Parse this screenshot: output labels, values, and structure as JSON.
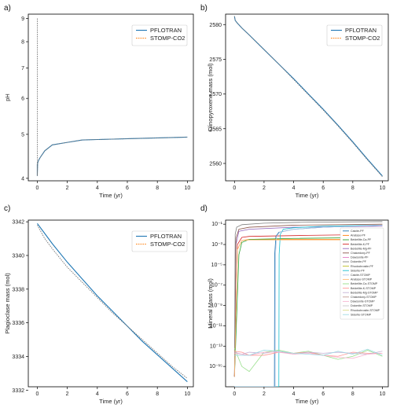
{
  "colors": {
    "pflotran": "#1f77b4",
    "stomp": "#ff7f0e",
    "stomp_line": "#7a7a7a"
  },
  "chart_data": [
    {
      "type": "line",
      "panel_label": "a)",
      "xlabel": "Time (yr)",
      "ylabel": "pH",
      "xlim": [
        -0.6,
        10.4
      ],
      "ylim": [
        3.95,
        9.2
      ],
      "y_scale": "log",
      "x_ticks": [
        0,
        2,
        4,
        6,
        8,
        10
      ],
      "y_ticks": [
        4,
        5,
        6,
        7,
        8,
        9
      ],
      "y_tick_labels": [
        "4",
        "5",
        "6",
        "7",
        "8",
        "9"
      ],
      "legend": "upper-right",
      "series": [
        {
          "name": "PFLOTRAN",
          "x": [
            0,
            0,
            0.02,
            0.08,
            0.2,
            0.5,
            1,
            2,
            3,
            4,
            5,
            6,
            7,
            8,
            9,
            10
          ],
          "y": [
            4.3,
            4.05,
            4.32,
            4.38,
            4.45,
            4.6,
            4.74,
            4.8,
            4.86,
            4.87,
            4.88,
            4.89,
            4.9,
            4.91,
            4.92,
            4.93
          ]
        },
        {
          "name": "STOMP-CO2",
          "x": [
            0,
            0,
            0.02,
            0.08,
            0.2,
            0.5,
            1,
            2,
            3,
            4,
            5,
            6,
            7,
            8,
            9,
            10
          ],
          "y": [
            9.0,
            4.05,
            4.32,
            4.38,
            4.45,
            4.6,
            4.74,
            4.8,
            4.86,
            4.87,
            4.88,
            4.89,
            4.9,
            4.91,
            4.92,
            4.93
          ]
        }
      ]
    },
    {
      "type": "line",
      "panel_label": "b)",
      "xlabel": "Time (yr)",
      "ylabel": "Clinopyroxene mass (mol)",
      "xlim": [
        -0.6,
        10.4
      ],
      "ylim": [
        2557.5,
        2581.5
      ],
      "x_ticks": [
        0,
        2,
        4,
        6,
        8,
        10
      ],
      "y_ticks": [
        2560,
        2565,
        2570,
        2575,
        2580
      ],
      "legend": "upper-right",
      "series": [
        {
          "name": "PFLOTRAN",
          "x": [
            0,
            0.05,
            0.2,
            0.5,
            1,
            2,
            3,
            4,
            5,
            6,
            7,
            8,
            9,
            10
          ],
          "y": [
            2581.2,
            2580.6,
            2580.2,
            2579.5,
            2578.5,
            2576.4,
            2574.3,
            2572.2,
            2570.0,
            2567.8,
            2565.5,
            2563.1,
            2560.6,
            2558.2
          ]
        },
        {
          "name": "STOMP-CO2",
          "x": [
            0,
            0.05,
            0.2,
            0.5,
            1,
            2,
            3,
            4,
            5,
            6,
            7,
            8,
            9,
            10
          ],
          "y": [
            2581.2,
            2580.6,
            2580.2,
            2579.5,
            2578.5,
            2576.4,
            2574.3,
            2572.1,
            2569.9,
            2567.7,
            2565.4,
            2563.0,
            2560.5,
            2558.1
          ]
        }
      ]
    },
    {
      "type": "line",
      "panel_label": "c)",
      "xlabel": "Time (yr)",
      "ylabel": "Plagioclase mass (mol)",
      "xlim": [
        -0.6,
        10.4
      ],
      "ylim": [
        3332.2,
        3342.1
      ],
      "x_ticks": [
        0,
        2,
        4,
        6,
        8,
        10
      ],
      "y_ticks": [
        3332,
        3334,
        3336,
        3338,
        3340,
        3342
      ],
      "legend": "upper-right",
      "series": [
        {
          "name": "PFLOTRAN",
          "x": [
            0,
            0.5,
            1,
            2,
            3,
            4,
            5,
            6,
            7,
            8,
            9,
            10
          ],
          "y": [
            3341.9,
            3341.3,
            3340.7,
            3339.6,
            3338.6,
            3337.6,
            3336.7,
            3335.8,
            3334.9,
            3334.1,
            3333.3,
            3332.5
          ]
        },
        {
          "name": "STOMP-CO2",
          "x": [
            0,
            0.5,
            1,
            2,
            3,
            4,
            5,
            6,
            7,
            8,
            9,
            10
          ],
          "y": [
            3341.8,
            3341.0,
            3340.4,
            3339.3,
            3338.4,
            3337.5,
            3336.6,
            3335.8,
            3335.0,
            3334.2,
            3333.4,
            3332.7
          ]
        }
      ]
    },
    {
      "type": "line",
      "panel_label": "d)",
      "xlabel": "Time (yr)",
      "ylabel": "Mineral Mass (mol)",
      "xlim": [
        -0.6,
        10.4
      ],
      "y_scale": "log",
      "ylim_log10": [
        -17,
        -0.6
      ],
      "x_ticks": [
        0,
        2,
        4,
        6,
        8,
        10
      ],
      "y_ticks_log10": [
        -1,
        -3,
        -5,
        -7,
        -9,
        -11,
        -13,
        -15
      ],
      "y_tick_labels": [
        "10⁻¹",
        "10⁻³",
        "10⁻⁵",
        "10⁻⁷",
        "10⁻⁹",
        "10⁻¹¹",
        "10⁻¹³",
        "10⁻¹⁵"
      ],
      "legend": "center-right",
      "legend_entries": [
        {
          "name": "Calcite-PF",
          "color": "#1f77b4"
        },
        {
          "name": "Anatase-PF",
          "color": "#ff7f0e"
        },
        {
          "name": "Beidellite-Ca-PF",
          "color": "#2ca02c"
        },
        {
          "name": "Beidellite-K-PF",
          "color": "#d62728"
        },
        {
          "name": "Beidellite-Mg-PF",
          "color": "#9467bd"
        },
        {
          "name": "Chalcedony-PF",
          "color": "#8c564b"
        },
        {
          "name": "Dawsonite-PF",
          "color": "#e377c2"
        },
        {
          "name": "Dolomite-PF",
          "color": "#7f7f7f"
        },
        {
          "name": "Rhodochrosite-PF",
          "color": "#bcbd22"
        },
        {
          "name": "Siderite-PF",
          "color": "#17becf"
        },
        {
          "name": "Calcite-STOMP",
          "color": "#aec7e8"
        },
        {
          "name": "Anatase-STOMP",
          "color": "#ffbb78"
        },
        {
          "name": "Beidellite-Ca-STOMP",
          "color": "#98df8a"
        },
        {
          "name": "Beidellite-K-STOMP",
          "color": "#ff9896"
        },
        {
          "name": "Beidellite-Mg-STOMP",
          "color": "#c5b0d5"
        },
        {
          "name": "Chalcedony-STOMP",
          "color": "#c49c94"
        },
        {
          "name": "Dawsonite-STOMP",
          "color": "#f7b6d2"
        },
        {
          "name": "Dolomite-STOMP",
          "color": "#c7c7c7"
        },
        {
          "name": "Rhodochrosite-STOMP",
          "color": "#dbdb8d"
        },
        {
          "name": "Siderite-STOMP",
          "color": "#9edae5"
        }
      ],
      "series": [
        {
          "name": "Calcite-PF",
          "color": "#1f77b4",
          "x": [
            0,
            2.7,
            2.72,
            2.8,
            3,
            4,
            6,
            8,
            10
          ],
          "y_log10": [
            -17,
            -17,
            -4,
            -2.2,
            -1.8,
            -1.5,
            -1.3,
            -1.2,
            -1.1
          ]
        },
        {
          "name": "Anatase-PF",
          "color": "#ff7f0e",
          "x": [
            0,
            0.2,
            0.5,
            1,
            5,
            10
          ],
          "y_log10": [
            -16,
            -3.5,
            -2.6,
            -2.5,
            -2.5,
            -2.5
          ]
        },
        {
          "name": "Beidellite-Ca-PF",
          "color": "#2ca02c",
          "x": [
            0,
            0.3,
            0.5,
            1,
            4,
            10
          ],
          "y_log10": [
            -16,
            -4,
            -2.8,
            -2.5,
            -2.4,
            -2.3
          ]
        },
        {
          "name": "Beidellite-K-PF",
          "color": "#d62728",
          "x": [
            0,
            0.2,
            0.5,
            1,
            5,
            10
          ],
          "y_log10": [
            -16,
            -3,
            -2.3,
            -2.2,
            -2.1,
            -2.0
          ]
        },
        {
          "name": "Beidellite-Mg-PF",
          "color": "#9467bd",
          "x": [
            0,
            0.1,
            0.3,
            1,
            4,
            10
          ],
          "y_log10": [
            -16,
            -3,
            -1.7,
            -1.5,
            -1.3,
            -1.2
          ]
        },
        {
          "name": "Chalcedony-PF",
          "color": "#8c564b",
          "x": [
            0,
            0.1,
            0.3,
            1,
            4,
            10
          ],
          "y_log10": [
            -16,
            -2.4,
            -1.5,
            -1.3,
            -1.1,
            -1.0
          ]
        },
        {
          "name": "Dolomite-PF",
          "color": "#7f7f7f",
          "x": [
            0,
            0.05,
            0.15,
            0.5,
            2,
            5,
            10
          ],
          "y_log10": [
            -16,
            -2,
            -1.3,
            -1.05,
            -0.9,
            -0.8,
            -0.75
          ]
        },
        {
          "name": "Siderite-PF",
          "color": "#17becf",
          "x": [
            0,
            3.0,
            3.02,
            3.1,
            3.3,
            4,
            6,
            10
          ],
          "y_log10": [
            -17,
            -17,
            -4,
            -2,
            -1.5,
            -1.35,
            -1.2,
            -1.1
          ]
        },
        {
          "name": "Calcite-STOMP",
          "color": "#aec7e8",
          "x": [
            0,
            2.75,
            2.77,
            2.85,
            3.05,
            4,
            6,
            8,
            10
          ],
          "y_log10": [
            -17,
            -17,
            -4,
            -2.2,
            -1.8,
            -1.5,
            -1.3,
            -1.2,
            -1.1
          ]
        },
        {
          "name": "Anatase-STOMP",
          "color": "#ffbb78",
          "x": [
            0,
            0.2,
            0.5,
            1,
            5,
            10
          ],
          "y_log10": [
            -16,
            -3.5,
            -2.6,
            -2.55,
            -2.55,
            -2.55
          ]
        },
        {
          "name": "Beidellite-Ca-STOMP",
          "color": "#98df8a",
          "x": [
            0,
            0.5,
            1,
            2,
            3,
            4,
            5,
            6,
            7,
            8,
            9,
            10
          ],
          "y_log10": [
            -13.2,
            -15,
            -15.5,
            -13.6,
            -13.4,
            -13.7,
            -13.5,
            -13.9,
            -14.3,
            -14.0,
            -13.4,
            -14.0
          ]
        },
        {
          "name": "Beidellite-K-STOMP",
          "color": "#ff9896",
          "x": [
            0,
            0.5,
            1,
            2,
            3,
            4,
            5,
            6,
            7,
            8,
            9,
            10
          ],
          "y_log10": [
            -13.5,
            -13.6,
            -13.9,
            -13.9,
            -13.6,
            -13.7,
            -13.6,
            -13.9,
            -14.0,
            -13.6,
            -13.7,
            -13.7
          ]
        },
        {
          "name": "Beidellite-Mg-STOMP",
          "color": "#c5b0d5",
          "x": [
            0,
            0.5,
            1,
            2,
            3,
            4,
            5,
            6,
            7,
            8,
            9,
            10
          ],
          "y_log10": [
            -13.6,
            -13.8,
            -13.6,
            -13.7,
            -13.5,
            -13.8,
            -13.6,
            -13.7,
            -13.6,
            -13.7,
            -13.8,
            -13.5
          ]
        },
        {
          "name": "Dawsonite-STOMP",
          "color": "#f7b6d2",
          "x": [
            0,
            1,
            2,
            3,
            4,
            5,
            6,
            7,
            8,
            9,
            10
          ],
          "y_log10": [
            -13.7,
            -13.9,
            -13.6,
            -13.6,
            -13.8,
            -13.7,
            -13.9,
            -14.1,
            -14.2,
            -13.8,
            -13.7
          ]
        },
        {
          "name": "Siderite-STOMP",
          "color": "#9edae5",
          "x": [
            0,
            0.5,
            1,
            2,
            3,
            4,
            5,
            6,
            7,
            8,
            9,
            10
          ],
          "y_log10": [
            -13.9,
            -13.9,
            -13.9,
            -13.4,
            -13.5,
            -13.7,
            -13.8,
            -13.9,
            -13.5,
            -13.8,
            -13.3,
            -13.9
          ]
        }
      ]
    }
  ]
}
